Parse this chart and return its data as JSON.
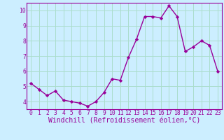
{
  "x": [
    0,
    1,
    2,
    3,
    4,
    5,
    6,
    7,
    8,
    9,
    10,
    11,
    12,
    13,
    14,
    15,
    16,
    17,
    18,
    19,
    20,
    21,
    22,
    23
  ],
  "y": [
    5.2,
    4.8,
    4.4,
    4.7,
    4.1,
    4.0,
    3.9,
    3.7,
    4.0,
    4.6,
    5.5,
    5.4,
    6.9,
    8.1,
    9.6,
    9.6,
    9.5,
    10.3,
    9.6,
    7.3,
    7.6,
    8.0,
    7.7,
    6.0
  ],
  "line_color": "#990099",
  "marker": "D",
  "marker_size": 2.2,
  "linewidth": 1.0,
  "xlabel": "Windchill (Refroidissement éolien,°C)",
  "xlim": [
    -0.5,
    23.5
  ],
  "ylim": [
    3.5,
    10.5
  ],
  "yticks": [
    4,
    5,
    6,
    7,
    8,
    9,
    10
  ],
  "xticks": [
    0,
    1,
    2,
    3,
    4,
    5,
    6,
    7,
    8,
    9,
    10,
    11,
    12,
    13,
    14,
    15,
    16,
    17,
    18,
    19,
    20,
    21,
    22,
    23
  ],
  "bg_color": "#cceeff",
  "grid_color": "#aaddcc",
  "tick_label_fontsize": 5.8,
  "xlabel_fontsize": 7.0
}
